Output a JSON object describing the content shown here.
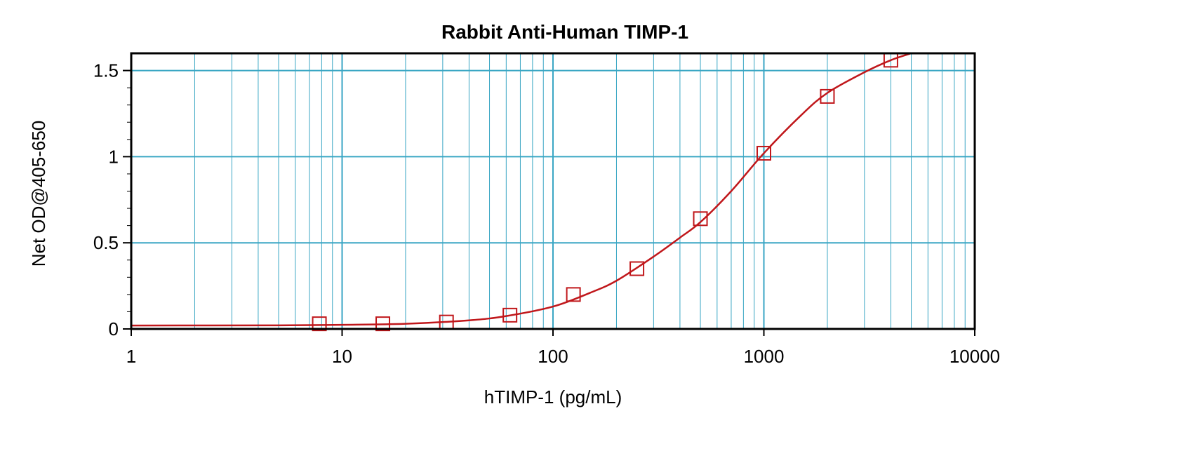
{
  "chart_data": {
    "type": "scatter",
    "title": "Rabbit Anti-Human TIMP-1",
    "xlabel": "hTIMP-1 (pg/mL)",
    "ylabel": "Net OD@405-650",
    "x_scale": "log",
    "xlim": [
      1,
      10000
    ],
    "ylim": [
      0,
      1.6
    ],
    "x_ticks": [
      1,
      10,
      100,
      1000,
      10000
    ],
    "x_tick_labels": [
      "1",
      "10",
      "100",
      "1000",
      "10000"
    ],
    "y_ticks": [
      0,
      0.5,
      1,
      1.5
    ],
    "y_tick_labels": [
      "0",
      "0.5",
      "1",
      "1.5"
    ],
    "grid": true,
    "colors": {
      "grid": "#3aa6c4",
      "series": "#c0171b",
      "axes": "#000000"
    },
    "series": [
      {
        "type": "scatter",
        "marker": "open-square",
        "x": [
          7.8,
          15.6,
          31.25,
          62.5,
          125,
          250,
          500,
          1000,
          2000,
          4000
        ],
        "y": [
          0.03,
          0.03,
          0.04,
          0.08,
          0.2,
          0.35,
          0.64,
          1.02,
          1.35,
          1.56
        ]
      },
      {
        "type": "line",
        "x": [
          1,
          5,
          10,
          20,
          40,
          60,
          100,
          150,
          200,
          300,
          400,
          500,
          700,
          1000,
          1500,
          2000,
          3000,
          4000,
          5000
        ],
        "y": [
          0.02,
          0.021,
          0.024,
          0.03,
          0.05,
          0.075,
          0.13,
          0.21,
          0.28,
          0.42,
          0.53,
          0.62,
          0.8,
          1.02,
          1.24,
          1.37,
          1.49,
          1.56,
          1.6
        ]
      }
    ]
  }
}
